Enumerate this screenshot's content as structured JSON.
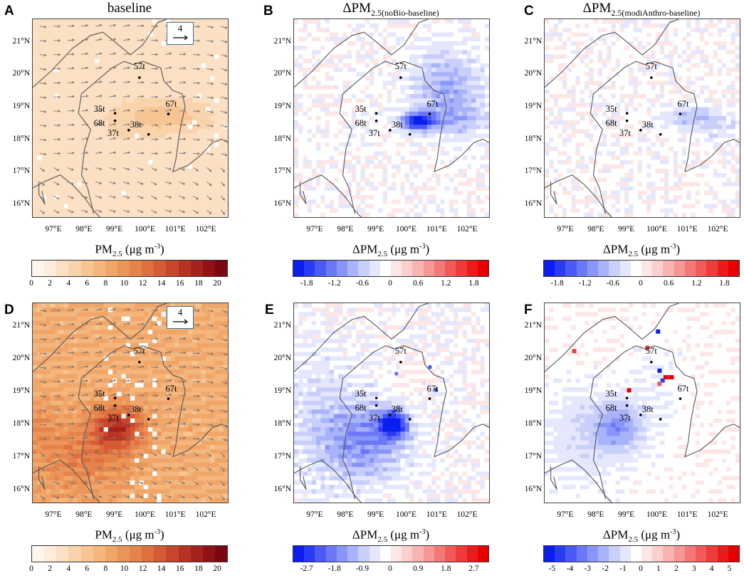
{
  "figure": {
    "lat_ticks": [
      "21°N",
      "20°N",
      "19°N",
      "18°N",
      "17°N",
      "16°N"
    ],
    "lon_ticks": [
      "97°E",
      "98°E",
      "99°E",
      "100°E",
      "101°E",
      "102°E"
    ],
    "lon_range": [
      96.3,
      102.7
    ],
    "lat_range": [
      15.6,
      21.7
    ],
    "sites": [
      {
        "name": "57t",
        "lon": 99.8,
        "lat": 19.9
      },
      {
        "name": "67t",
        "lon": 100.75,
        "lat": 18.78
      },
      {
        "name": "35t",
        "lon": 99.0,
        "lat": 18.8
      },
      {
        "name": "68t",
        "lon": 99.0,
        "lat": 18.57
      },
      {
        "name": "37t",
        "lon": 99.45,
        "lat": 18.28
      },
      {
        "name": "38t",
        "lon": 100.1,
        "lat": 18.15
      }
    ],
    "wind_reference": "4",
    "colors": {
      "reds": [
        "#fdf6ee",
        "#fcecd9",
        "#fbe0c3",
        "#f9d3ab",
        "#f7c593",
        "#f4b67c",
        "#f0a669",
        "#ec9559",
        "#e6834c",
        "#de7040",
        "#d45b35",
        "#c8472c",
        "#b93324",
        "#a6201c",
        "#921115",
        "#7a0810"
      ],
      "diverging": [
        "#0a1ef0",
        "#2a3cf2",
        "#4b5af4",
        "#6b78f5",
        "#8a96f7",
        "#a9b3f9",
        "#c8cffb",
        "#e4e7fd",
        "#ffffff",
        "#fde6e6",
        "#fbcfcf",
        "#f9b3b3",
        "#f79696",
        "#f47878",
        "#f25a5a",
        "#ef3b3b",
        "#ec1b1b",
        "#e80000"
      ]
    }
  },
  "panels": [
    {
      "id": "A",
      "label": "A",
      "title": "baseline",
      "cb_title": "PM",
      "cb_sub": "2.5",
      "cb_unit": " (μg m",
      "cb_exp": "-3",
      "cb_close": ")",
      "cb_ticks": [
        "0",
        "2",
        "4",
        "6",
        "8",
        "10",
        "12",
        "14",
        "16",
        "18",
        "20"
      ],
      "chart_data": {
        "type": "heatmap",
        "title": "baseline",
        "variable": "PM2.5 (μg m-3)",
        "colorbar_range": [
          0,
          21
        ],
        "regional_values": {
          "background": 3.5,
          "max_region": 6,
          "max_region_location": "around 67t, 18.5-19°N"
        },
        "wind_vectors": "shown, reference 4"
      }
    },
    {
      "id": "B",
      "label": "B",
      "title": "ΔPM",
      "title_sub": "2.5(noBio-baseline)",
      "cb_title": "ΔPM",
      "cb_sub": "2.5",
      "cb_unit": " (μg m",
      "cb_exp": "-3",
      "cb_close": ")",
      "cb_ticks": [
        "-1.8",
        "-1.2",
        "-0.6",
        "0",
        "0.6",
        "1.2",
        "1.8"
      ],
      "chart_data": {
        "type": "heatmap",
        "title": "ΔPM2.5(noBio-baseline)",
        "colorbar_range": [
          -2.1,
          2.1
        ],
        "regional_values": {
          "min": -1.8,
          "min_location": "east of 38t to 67t, ~18.6°N",
          "northeast_plume": -0.8,
          "elsewhere": 0
        }
      }
    },
    {
      "id": "C",
      "label": "C",
      "title": "ΔPM",
      "title_sub": "2.5(modiAnthro-baseline)",
      "cb_title": "ΔPM",
      "cb_sub": "2.5",
      "cb_unit": " (μg m",
      "cb_exp": "-3",
      "cb_close": ")",
      "cb_ticks": [
        "-1.8",
        "-1.2",
        "-0.6",
        "0",
        "0.6",
        "1.2",
        "1.8"
      ],
      "chart_data": {
        "type": "heatmap",
        "title": "ΔPM2.5(modiAnthro-baseline)",
        "colorbar_range": [
          -2.1,
          2.1
        ],
        "regional_values": {
          "min": -0.6,
          "min_location": "east of 67t, ~18.6°N",
          "elsewhere": 0
        }
      }
    },
    {
      "id": "D",
      "label": "D",
      "title": "",
      "cb_title": "PM",
      "cb_sub": "2.5",
      "cb_unit": " (μg m",
      "cb_exp": "-3",
      "cb_close": ")",
      "cb_ticks": [
        "0",
        "2",
        "4",
        "6",
        "8",
        "10",
        "12",
        "14",
        "16",
        "18",
        "20"
      ],
      "chart_data": {
        "type": "heatmap",
        "variable": "PM2.5 (μg m-3)",
        "colorbar_range": [
          0,
          21
        ],
        "regional_values": {
          "background": 9,
          "max": 17,
          "max_location": "around 37t, ~18°N",
          "south": 12
        },
        "wind_vectors": "shown, reference 4"
      }
    },
    {
      "id": "E",
      "label": "E",
      "title": "",
      "cb_title": "ΔPM",
      "cb_sub": "2.5",
      "cb_unit": " (μg m",
      "cb_exp": "-3",
      "cb_close": ")",
      "cb_ticks": [
        "-2.7",
        "-1.8",
        "-0.9",
        "0",
        "0.9",
        "1.8",
        "2.7"
      ],
      "chart_data": {
        "type": "heatmap",
        "colorbar_range": [
          -3.15,
          3.15
        ],
        "regional_values": {
          "min": -3.0,
          "min_location": "south-east of 37t, ~18°N",
          "west_region": -0.6,
          "north_east": 0.2
        }
      }
    },
    {
      "id": "F",
      "label": "F",
      "title": "",
      "cb_title": "ΔPM",
      "cb_sub": "2.5",
      "cb_unit": " (μg m",
      "cb_exp": "-3",
      "cb_close": ")",
      "cb_ticks": [
        "-5",
        "-4",
        "-3",
        "-2",
        "-1",
        "0",
        "1",
        "2",
        "3",
        "4",
        "5"
      ],
      "chart_data": {
        "type": "heatmap",
        "colorbar_range": [
          -5.5,
          5.5
        ],
        "regional_values": {
          "min": -2.5,
          "min_location": "west of 37t, ~18°N",
          "isolated_positive_max": 5,
          "isolated_positive_location": "near 57t, ~19.5°N"
        }
      }
    }
  ]
}
